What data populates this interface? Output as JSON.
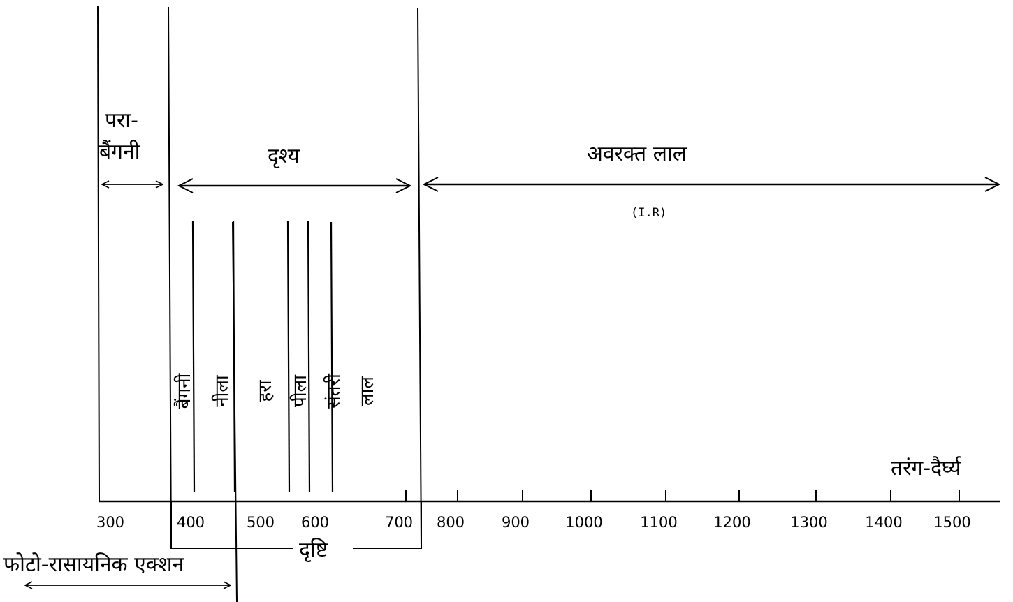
{
  "regions": {
    "uv_line1": "परा-",
    "uv_line2": "बैंगनी",
    "visible": "दृश्य",
    "infrared": "अवरक्त लाल",
    "infrared_abbr": "(I.R)"
  },
  "colors": [
    {
      "name": "बैंगनी",
      "wavelength": 400
    },
    {
      "name": "नीला",
      "wavelength": 455
    },
    {
      "name": "हरा",
      "wavelength": 530
    },
    {
      "name": "पीला",
      "wavelength": 582
    },
    {
      "name": "संतरी",
      "wavelength": 615
    },
    {
      "name": "लाल",
      "wavelength": 680
    }
  ],
  "axis": {
    "title": "तरंग-दैर्घ्य",
    "ticks": [
      300,
      400,
      500,
      600,
      700,
      800,
      900,
      1000,
      1100,
      1200,
      1300,
      1400,
      1500
    ]
  },
  "ranges": {
    "vision": "दृष्टि",
    "photochemical": "फोटो-रासायनिक एक्शन"
  }
}
